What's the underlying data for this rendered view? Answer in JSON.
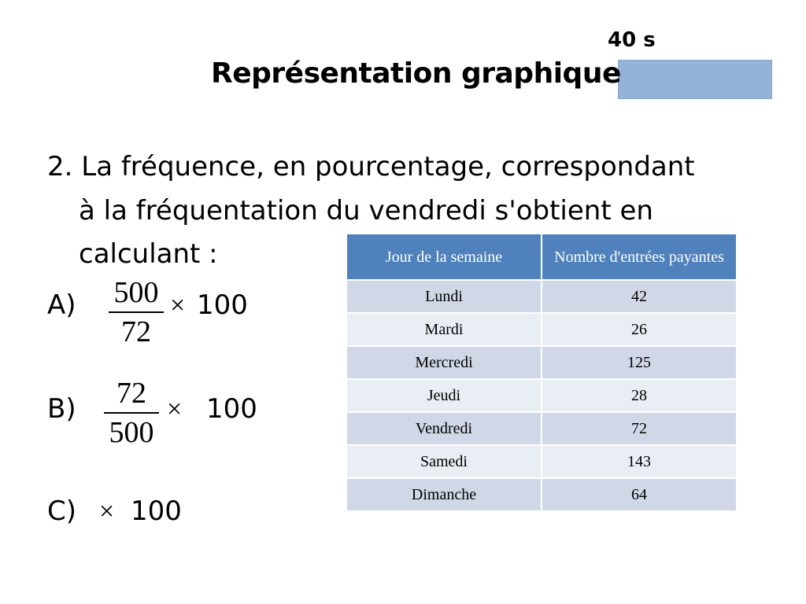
{
  "timer": {
    "text": "40 s"
  },
  "title": "Représentation graphique",
  "question": {
    "line1": "2. La fréquence, en pourcentage, correspondant",
    "line2": "à la fréquentation du vendredi s'obtient en",
    "line3": "calculant :"
  },
  "options": {
    "a": {
      "label": "A)",
      "numerator": "500",
      "denominator": "72",
      "times": "×",
      "multiplier": "100"
    },
    "b": {
      "label": "B)",
      "numerator": "72",
      "denominator": "500",
      "times": "×",
      "multiplier": "100"
    },
    "c": {
      "label": "C)",
      "times": "×",
      "multiplier": "100"
    }
  },
  "table": {
    "headers": [
      "Jour de la semaine",
      "Nombre d'entrées payantes"
    ],
    "rows": [
      [
        "Lundi",
        "42"
      ],
      [
        "Mardi",
        "26"
      ],
      [
        "Mercredi",
        "125"
      ],
      [
        "Jeudi",
        "28"
      ],
      [
        "Vendredi",
        "72"
      ],
      [
        "Samedi",
        "143"
      ],
      [
        "Dimanche",
        "64"
      ]
    ]
  },
  "colors": {
    "header": "#4f81bd",
    "row_odd": "#d0d8e8",
    "row_even": "#e9edf4",
    "timer_box": "#95b3d7"
  }
}
